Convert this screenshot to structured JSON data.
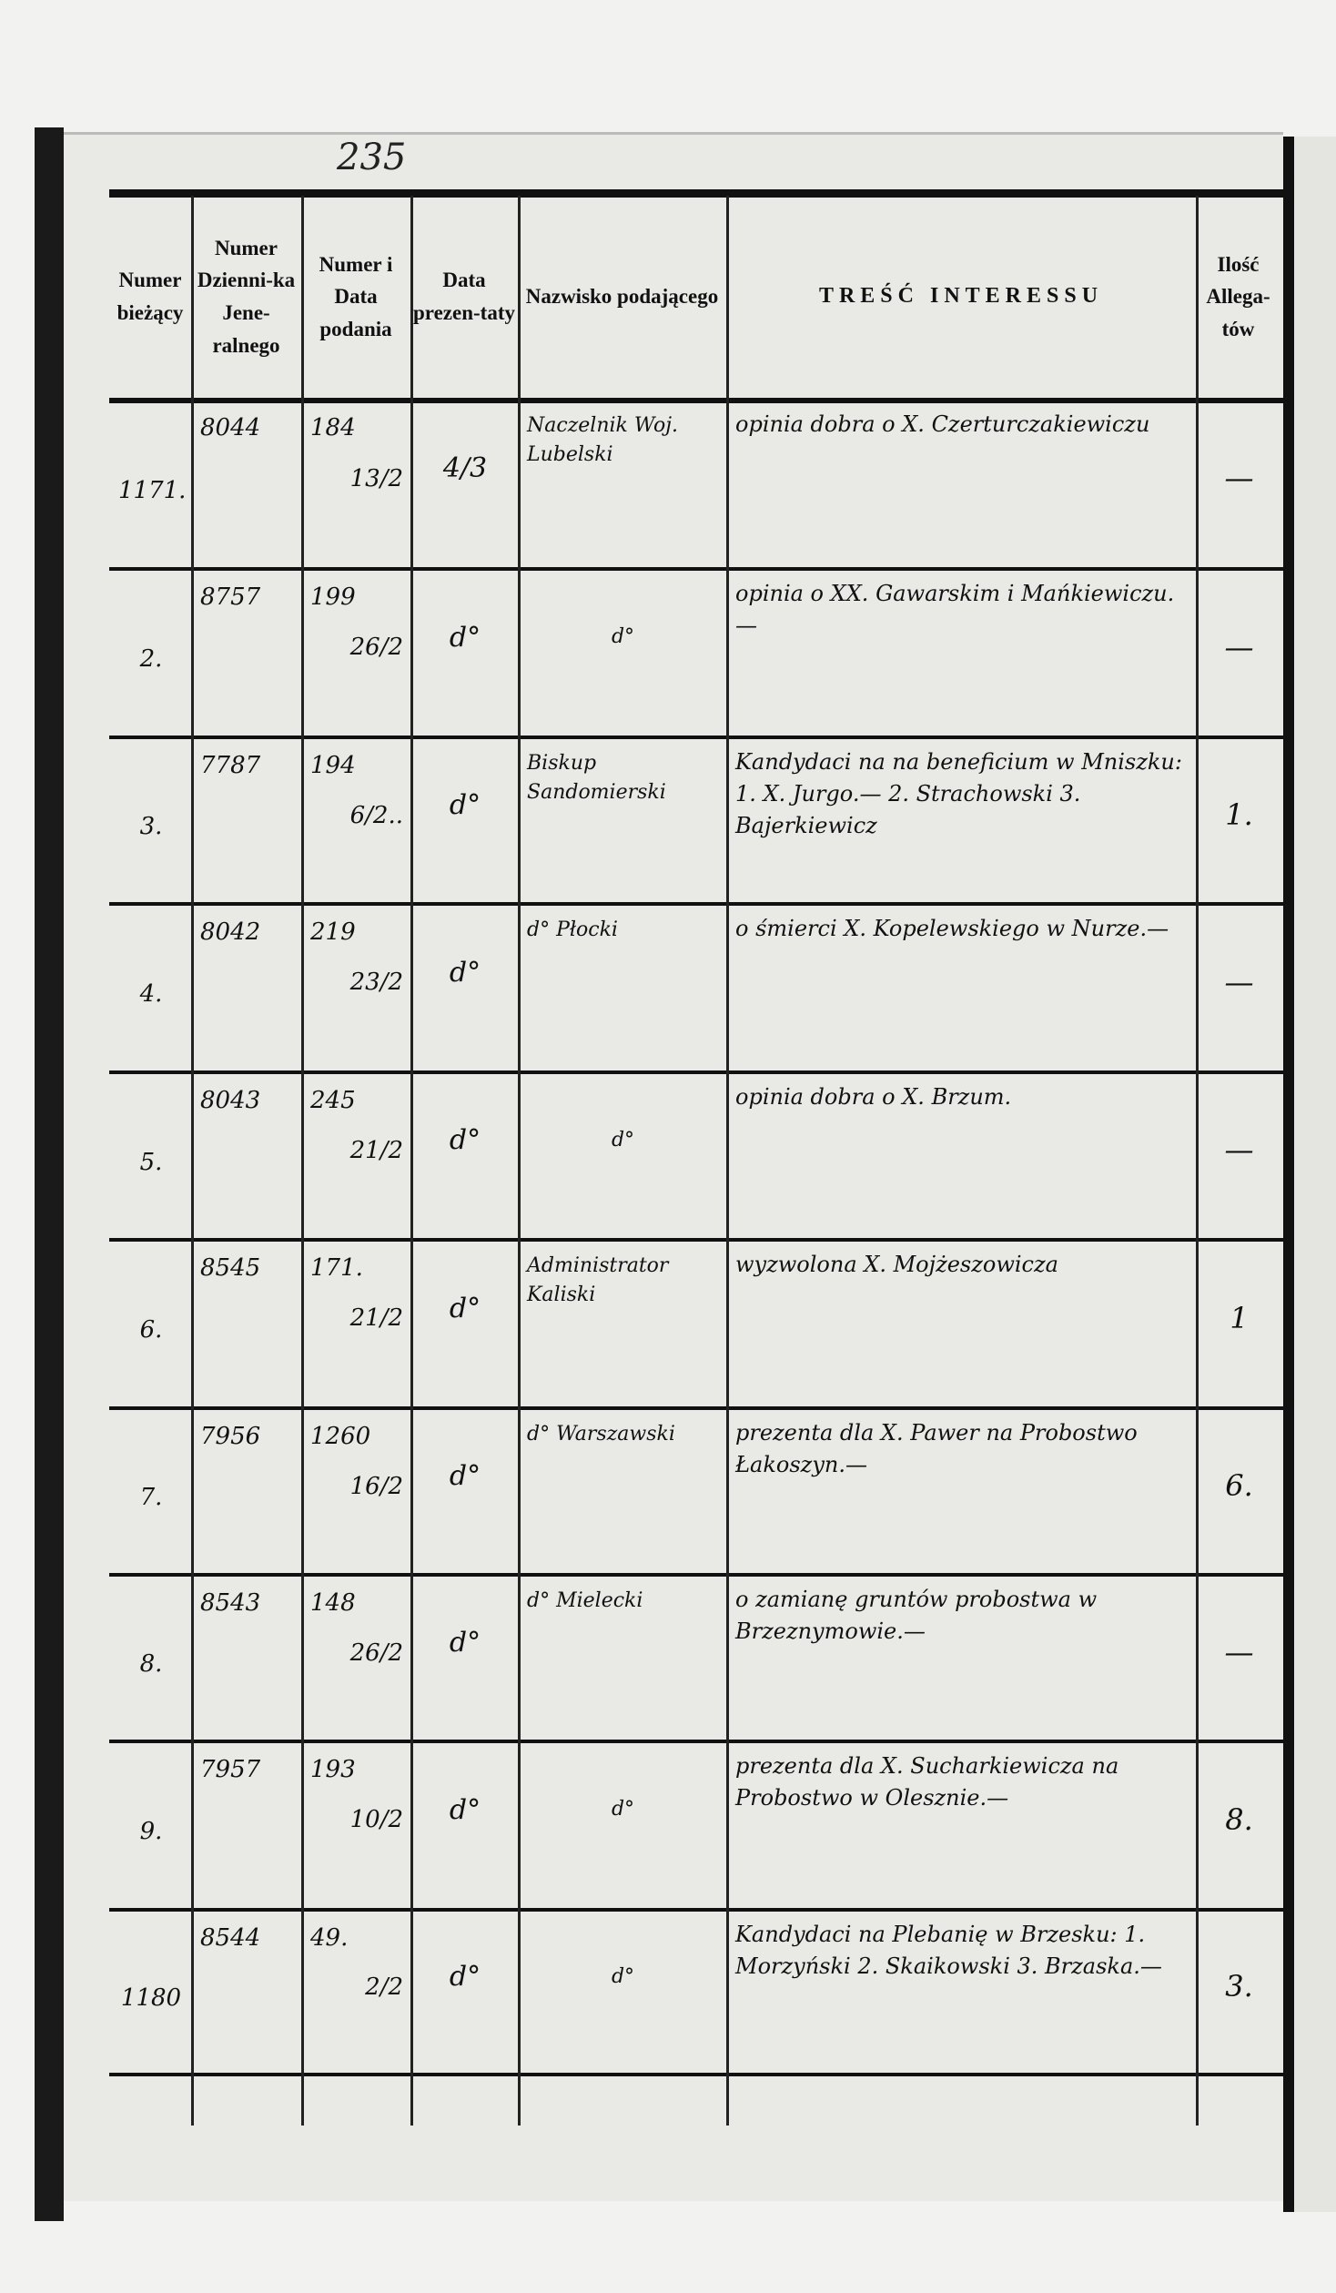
{
  "page_number": "235",
  "headers": [
    "Numer bieżący",
    "Numer Dzienni-ka Jene-ralnego",
    "Numer i Data podania",
    "Data prezen-taty",
    "Nazwisko podającego",
    "TREŚĆ INTERESSU",
    "Ilość Allega-tów"
  ],
  "rows": [
    {
      "no": "1171.",
      "journal": "8044",
      "petition_no": "184",
      "petition_date": "13/2",
      "presented": "4/3",
      "name": "Naczelnik Woj. Lubelski",
      "content": "opinia dobra o X. Czerturczakiewiczu",
      "attachments": "—"
    },
    {
      "no": "2.",
      "journal": "8757",
      "petition_no": "199",
      "petition_date": "26/2",
      "presented": "d°",
      "name": "d°",
      "content": "opinia o XX. Gawarskim i Mańkiewiczu.—",
      "attachments": "—"
    },
    {
      "no": "3.",
      "journal": "7787",
      "petition_no": "194",
      "petition_date": "6/2..",
      "presented": "d°",
      "name": "Biskup Sandomierski",
      "content": "Kandydaci na na beneficium w Mniszku: 1. X. Jurgo.— 2. Strachowski 3. Bajerkiewicz",
      "attachments": "1."
    },
    {
      "no": "4.",
      "journal": "8042",
      "petition_no": "219",
      "petition_date": "23/2",
      "presented": "d°",
      "name": "d° Płocki",
      "content": "o śmierci X. Kopelewskiego w Nurze.—",
      "attachments": "—"
    },
    {
      "no": "5.",
      "journal": "8043",
      "petition_no": "245",
      "petition_date": "21/2",
      "presented": "d°",
      "name": "d°",
      "content": "opinia dobra o X. Brzum.",
      "attachments": "—"
    },
    {
      "no": "6.",
      "journal": "8545",
      "petition_no": "171.",
      "petition_date": "21/2",
      "presented": "d°",
      "name": "Administrator Kaliski",
      "content": "wyzwolona X. Mojżeszowicza",
      "attachments": "1"
    },
    {
      "no": "7.",
      "journal": "7956",
      "petition_no": "1260",
      "petition_date": "16/2",
      "presented": "d°",
      "name": "d° Warszawski",
      "content": "prezenta dla X. Pawer na Probostwo Łakoszyn.—",
      "attachments": "6."
    },
    {
      "no": "8.",
      "journal": "8543",
      "petition_no": "148",
      "petition_date": "26/2",
      "presented": "d°",
      "name": "d° Mielecki",
      "content": "o zamianę gruntów probostwa w Brzeznymowie.—",
      "attachments": "—"
    },
    {
      "no": "9.",
      "journal": "7957",
      "petition_no": "193",
      "petition_date": "10/2",
      "presented": "d°",
      "name": "d°",
      "content": "prezenta dla X. Sucharkiewicza na Probostwo w Olesznie.—",
      "attachments": "8."
    },
    {
      "no": "1180",
      "journal": "8544",
      "petition_no": "49.",
      "petition_date": "2/2",
      "presented": "d°",
      "name": "d°",
      "content": "Kandydaci na Plebanię w Brzesku: 1. Morzyński 2. Skaikowski 3. Brzaska.—",
      "attachments": "3."
    }
  ]
}
